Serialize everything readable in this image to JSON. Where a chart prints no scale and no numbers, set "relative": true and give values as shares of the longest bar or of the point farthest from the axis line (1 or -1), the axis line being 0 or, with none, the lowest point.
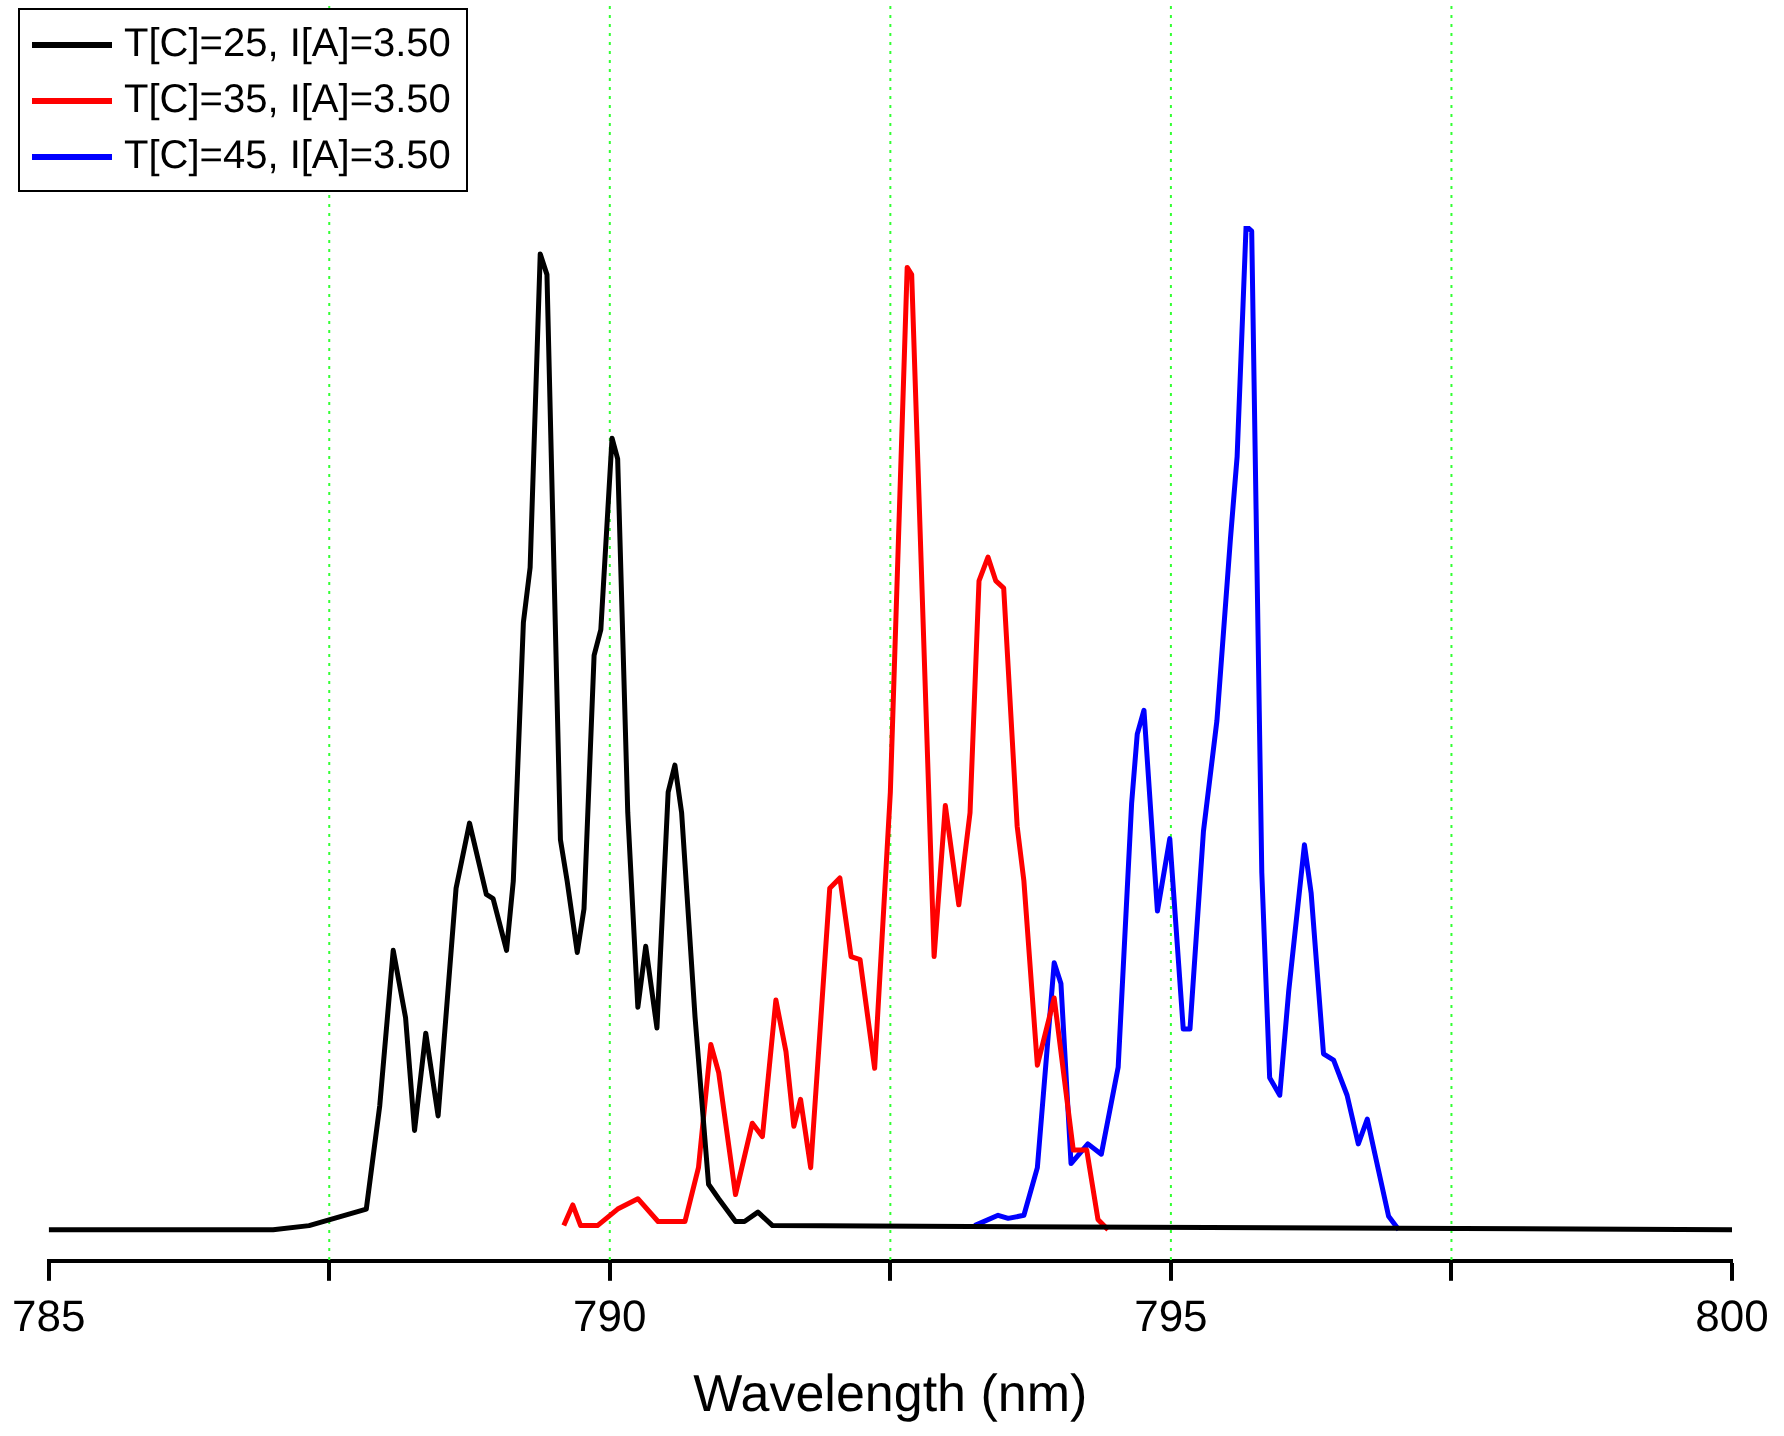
{
  "chart_data": {
    "type": "line",
    "xlabel": "Wavelength (nm)",
    "xlim": [
      785,
      800
    ],
    "xticks": [
      785,
      {
        "value": 787.5,
        "label": null
      },
      790,
      {
        "value": 792.5,
        "label": null
      },
      795,
      {
        "value": 797.5,
        "label": null
      },
      800
    ],
    "grid": "x",
    "legend": "top left",
    "relative": true,
    "series": [
      {
        "name": "T[C]=25, I[A]=3.50",
        "color": "#000000",
        "x": [
          785,
          787.0,
          787.32,
          787.83,
          787.95,
          788.07,
          788.18,
          788.26,
          788.36,
          788.47,
          788.63,
          788.75,
          788.9,
          788.96,
          789.08,
          789.14,
          789.23,
          789.29,
          789.38,
          789.44,
          789.56,
          789.62,
          789.71,
          789.77,
          789.86,
          789.92,
          790.02,
          790.07,
          790.16,
          790.25,
          790.32,
          790.42,
          790.52,
          790.58,
          790.64,
          790.76,
          790.88,
          790.97,
          791.12,
          791.2,
          791.32,
          791.45,
          800
        ],
        "values": [
          0.03,
          0.03,
          0.034,
          0.05,
          0.15,
          0.3,
          0.235,
          0.126,
          0.22,
          0.14,
          0.36,
          0.423,
          0.354,
          0.35,
          0.3,
          0.367,
          0.617,
          0.67,
          0.973,
          0.953,
          0.407,
          0.367,
          0.298,
          0.34,
          0.585,
          0.61,
          0.795,
          0.775,
          0.433,
          0.245,
          0.304,
          0.225,
          0.453,
          0.479,
          0.433,
          0.235,
          0.074,
          0.06,
          0.038,
          0.038,
          0.047,
          0.034,
          0.03
        ]
      },
      {
        "name": "T[C]=35, I[A]=3.50",
        "color": "#ff0000",
        "x": [
          789.59,
          789.67,
          789.74,
          789.89,
          790.07,
          790.25,
          790.43,
          790.67,
          790.79,
          790.9,
          790.97,
          791.12,
          791.27,
          791.36,
          791.48,
          791.57,
          791.64,
          791.7,
          791.79,
          791.96,
          792.05,
          792.15,
          792.23,
          792.36,
          792.5,
          792.65,
          792.69,
          792.89,
          792.99,
          793.11,
          793.21,
          793.29,
          793.37,
          793.44,
          793.51,
          793.63,
          793.69,
          793.81,
          793.96,
          794.13,
          794.25,
          794.35,
          794.44
        ],
        "values": [
          0.034,
          0.054,
          0.034,
          0.034,
          0.05,
          0.06,
          0.038,
          0.038,
          0.09,
          0.209,
          0.182,
          0.064,
          0.133,
          0.12,
          0.252,
          0.202,
          0.13,
          0.156,
          0.09,
          0.36,
          0.37,
          0.294,
          0.291,
          0.186,
          0.453,
          0.96,
          0.953,
          0.294,
          0.44,
          0.344,
          0.433,
          0.657,
          0.68,
          0.657,
          0.65,
          0.42,
          0.367,
          0.189,
          0.254,
          0.107,
          0.107,
          0.04,
          0.03
        ]
      },
      {
        "name": "T[C]=45, I[A]=3.50",
        "color": "#0000ff",
        "x": [
          793.25,
          793.46,
          793.55,
          793.69,
          793.81,
          793.96,
          794.02,
          794.11,
          794.26,
          794.38,
          794.53,
          794.65,
          794.7,
          794.76,
          794.88,
          794.99,
          795.11,
          795.17,
          795.29,
          795.41,
          795.53,
          795.59,
          795.67,
          795.72,
          795.81,
          795.88,
          795.97,
          796.05,
          796.19,
          796.25,
          796.36,
          796.45,
          796.57,
          796.67,
          796.75,
          796.81,
          796.94,
          797.03
        ],
        "values": [
          0.034,
          0.044,
          0.041,
          0.044,
          0.09,
          0.288,
          0.268,
          0.094,
          0.113,
          0.103,
          0.187,
          0.442,
          0.509,
          0.532,
          0.338,
          0.408,
          0.224,
          0.224,
          0.415,
          0.522,
          0.697,
          0.777,
          1.0,
          0.995,
          0.375,
          0.177,
          0.16,
          0.261,
          0.402,
          0.355,
          0.2,
          0.194,
          0.16,
          0.113,
          0.137,
          0.107,
          0.043,
          0.03
        ]
      }
    ]
  }
}
